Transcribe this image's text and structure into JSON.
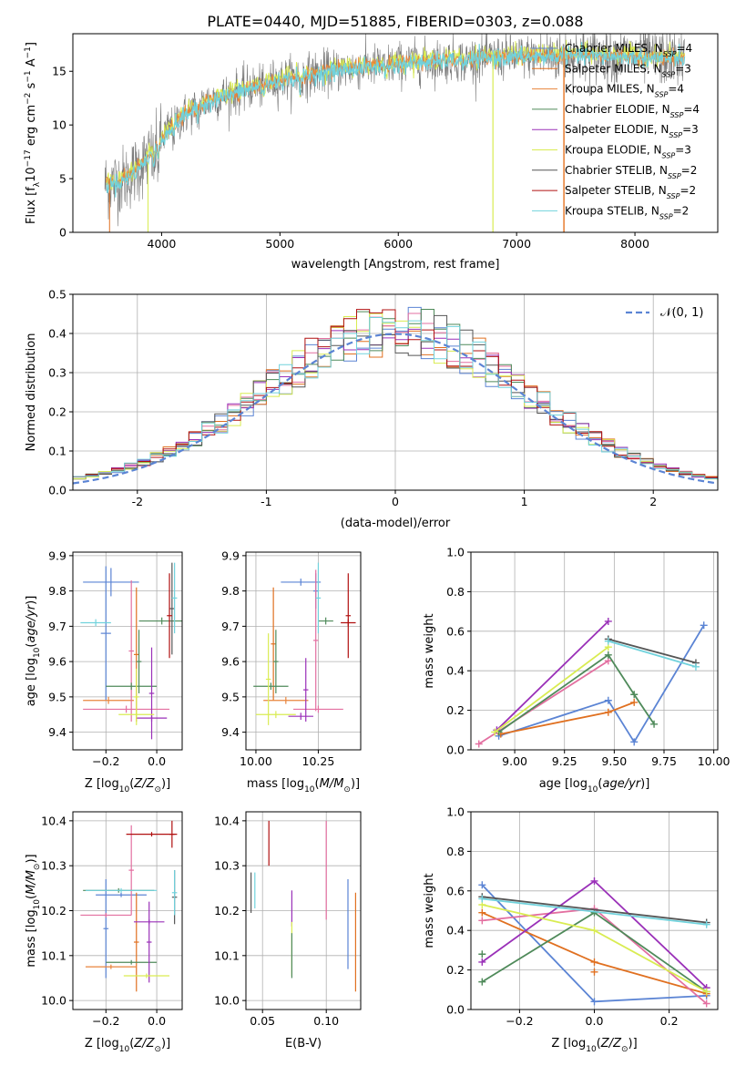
{
  "figure": {
    "title": "PLATE=0440, MJD=51885, FIBERID=0303, z=0.088"
  },
  "colors": {
    "chabrier_miles": "#5b84d4",
    "salpeter_miles": "#e07020",
    "kroupa_miles": "#e8843c",
    "chabrier_elodie": "#4f8a5a",
    "salpeter_elodie": "#9a30b8",
    "kroupa_elodie": "#d9ec52",
    "chabrier_stelib": "#555555",
    "salpeter_stelib": "#b01010",
    "kroupa_stelib": "#70d2dc",
    "pink": "#e36fa0",
    "normal_curve": "#5b84d4"
  },
  "chart_data": [
    {
      "id": "spectrum",
      "type": "line",
      "title": "PLATE=0440, MJD=51885, FIBERID=0303, z=0.088",
      "xlabel": "wavelength [Angstrom, rest frame]",
      "ylabel": "Flux [f_λ 10^-17 erg cm^-2 s^-1 A^-1]",
      "xlim": [
        3250,
        8700
      ],
      "ylim": [
        0,
        18.5
      ],
      "xticks": [
        4000,
        5000,
        6000,
        7000,
        8000
      ],
      "yticks": [
        0,
        5,
        10,
        15
      ],
      "grid": false,
      "legend_position": "upper-right",
      "continuum_x": [
        3550,
        3700,
        3850,
        3950,
        4050,
        4200,
        4400,
        4700,
        5000,
        5300,
        5600,
        5900,
        6200,
        6500,
        6800,
        7100,
        7400,
        7700,
        8000,
        8400
      ],
      "continuum_y": [
        4.5,
        5.0,
        6.5,
        8.0,
        9.5,
        11.0,
        12.3,
        13.3,
        14.2,
        14.8,
        15.3,
        15.6,
        15.9,
        16.1,
        16.3,
        16.4,
        16.5,
        16.5,
        16.4,
        16.2
      ],
      "series": [
        {
          "name": "Chabrier MILES, N_SSP=4",
          "color": "#5b84d4"
        },
        {
          "name": "Salpeter MILES, N_SSP=3",
          "color": "#e07020"
        },
        {
          "name": "Kroupa MILES, N_SSP=4",
          "color": "#e8843c"
        },
        {
          "name": "Chabrier ELODIE, N_SSP=4",
          "color": "#4f8a5a"
        },
        {
          "name": "Salpeter ELODIE, N_SSP=3",
          "color": "#9a30b8"
        },
        {
          "name": "Kroupa ELODIE, N_SSP=3",
          "color": "#d9ec52"
        },
        {
          "name": "Chabrier STELIB, N_SSP=2",
          "color": "#555555"
        },
        {
          "name": "Salpeter STELIB, N_SSP=2",
          "color": "#b01010"
        },
        {
          "name": "Kroupa STELIB, N_SSP=2",
          "color": "#70d2dc"
        }
      ],
      "legend_labels": [
        "Chabrier MILES, N",
        "Salpeter MILES, N",
        "Kroupa MILES, N",
        "Chabrier ELODIE, N",
        "Salpeter ELODIE, N",
        "Kroupa ELODIE, N",
        "Chabrier STELIB, N",
        "Salpeter STELIB, N",
        "Kroupa STELIB, N"
      ],
      "legend_subscript": "SSP",
      "legend_counts": [
        "=4",
        "=3",
        "=4",
        "=4",
        "=3",
        "=3",
        "=2",
        "=2",
        "=2"
      ]
    },
    {
      "id": "residuals",
      "type": "line",
      "xlabel": "(data-model)/error",
      "ylabel": "Normed distribution",
      "xlim": [
        -2.5,
        2.5
      ],
      "ylim": [
        0,
        0.5
      ],
      "xticks": [
        -2,
        -1,
        0,
        1,
        2
      ],
      "yticks": [
        0.0,
        0.1,
        0.2,
        0.3,
        0.4,
        0.5
      ],
      "grid": true,
      "legend_position": "upper-right",
      "legend": "N(0,1)",
      "normal_curve": {
        "mean": 0,
        "sigma": 1,
        "style": "dashed"
      },
      "bin_width": 0.1,
      "series_count": 9
    },
    {
      "id": "age_vs_Z",
      "type": "scatter",
      "xlabel": "Z [log10(Z/Z⊙)]",
      "ylabel": "age [log10(age/yr)]",
      "xlim": [
        -0.33,
        0.1
      ],
      "ylim": [
        9.35,
        9.91
      ],
      "xticks": [
        -0.2,
        0.0
      ],
      "xticklabels": [
        "−0.2",
        "0.0"
      ],
      "yticks": [
        9.4,
        9.5,
        9.6,
        9.7,
        9.8,
        9.9
      ],
      "grid": true,
      "points": [
        {
          "x": -0.18,
          "xerr": 0.11,
          "y": 9.825,
          "yerr": 0.04,
          "color": "#5b84d4"
        },
        {
          "x": -0.2,
          "xerr": 0.02,
          "y": 9.68,
          "yerr": 0.19,
          "color": "#5b84d4"
        },
        {
          "x": -0.08,
          "xerr": 0.01,
          "y": 9.62,
          "yerr": 0.19,
          "color": "#e07020"
        },
        {
          "x": -0.19,
          "xerr": 0.1,
          "y": 9.49,
          "yerr": 0.01,
          "color": "#e8843c"
        },
        {
          "x": -0.1,
          "xerr": 0.01,
          "y": 9.63,
          "yerr": 0.2,
          "color": "#e36fa0"
        },
        {
          "x": -0.12,
          "xerr": 0.17,
          "y": 9.465,
          "yerr": 0.01,
          "color": "#e36fa0"
        },
        {
          "x": -0.1,
          "xerr": 0.1,
          "y": 9.53,
          "yerr": 0.01,
          "color": "#4f8a5a"
        },
        {
          "x": -0.07,
          "xerr": 0.01,
          "y": 9.6,
          "yerr": 0.09,
          "color": "#4f8a5a"
        },
        {
          "x": -0.02,
          "xerr": 0.06,
          "y": 9.44,
          "yerr": 0.01,
          "color": "#9a30b8"
        },
        {
          "x": -0.02,
          "xerr": 0.01,
          "y": 9.51,
          "yerr": 0.13,
          "color": "#9a30b8"
        },
        {
          "x": -0.08,
          "xerr": 0.07,
          "y": 9.45,
          "yerr": 0.01,
          "color": "#d9ec52"
        },
        {
          "x": -0.08,
          "xerr": 0.01,
          "y": 9.5,
          "yerr": 0.08,
          "color": "#d9ec52"
        },
        {
          "x": 0.02,
          "xerr": 0.09,
          "y": 9.715,
          "yerr": 0.01,
          "color": "#4f8a5a"
        },
        {
          "x": 0.06,
          "xerr": 0.01,
          "y": 9.75,
          "yerr": 0.13,
          "color": "#555555"
        },
        {
          "x": 0.05,
          "xerr": 0.01,
          "y": 9.73,
          "yerr": 0.12,
          "color": "#b01010"
        },
        {
          "x": -0.24,
          "xerr": 0.06,
          "y": 9.71,
          "yerr": 0.01,
          "color": "#70d2dc"
        },
        {
          "x": 0.07,
          "xerr": 0.01,
          "y": 9.78,
          "yerr": 0.1,
          "color": "#70d2dc"
        }
      ]
    },
    {
      "id": "age_vs_mass",
      "type": "scatter",
      "xlabel": "mass [log10(M/M⊙)]",
      "ylabel": "",
      "xlim": [
        9.96,
        10.42
      ],
      "ylim": [
        9.35,
        9.91
      ],
      "xticks": [
        10.0,
        10.25
      ],
      "xticklabels": [
        "10.00",
        "10.25"
      ],
      "yticks": [
        9.4,
        9.5,
        9.6,
        9.7,
        9.8,
        9.9
      ],
      "grid": true,
      "points": [
        {
          "x": 10.18,
          "xerr": 0.08,
          "y": 9.825,
          "yerr": 0.01,
          "color": "#5b84d4"
        },
        {
          "x": 10.24,
          "xerr": 0.01,
          "y": 9.8,
          "yerr": 0.05,
          "color": "#5b84d4"
        },
        {
          "x": 10.07,
          "xerr": 0.01,
          "y": 9.65,
          "yerr": 0.16,
          "color": "#e07020"
        },
        {
          "x": 10.12,
          "xerr": 0.09,
          "y": 9.49,
          "yerr": 0.01,
          "color": "#e8843c"
        },
        {
          "x": 10.25,
          "xerr": 0.1,
          "y": 9.465,
          "yerr": 0.01,
          "color": "#e36fa0"
        },
        {
          "x": 10.24,
          "xerr": 0.01,
          "y": 9.66,
          "yerr": 0.2,
          "color": "#e36fa0"
        },
        {
          "x": 10.08,
          "xerr": 0.01,
          "y": 9.6,
          "yerr": 0.09,
          "color": "#4f8a5a"
        },
        {
          "x": 10.06,
          "xerr": 0.07,
          "y": 9.53,
          "yerr": 0.01,
          "color": "#4f8a5a"
        },
        {
          "x": 10.18,
          "xerr": 0.05,
          "y": 9.445,
          "yerr": 0.01,
          "color": "#9a30b8"
        },
        {
          "x": 10.2,
          "xerr": 0.01,
          "y": 9.52,
          "yerr": 0.09,
          "color": "#9a30b8"
        },
        {
          "x": 10.05,
          "xerr": 0.01,
          "y": 9.55,
          "yerr": 0.13,
          "color": "#d9ec52"
        },
        {
          "x": 10.08,
          "xerr": 0.08,
          "y": 9.45,
          "yerr": 0.01,
          "color": "#d9ec52"
        },
        {
          "x": 10.28,
          "xerr": 0.03,
          "y": 9.715,
          "yerr": 0.01,
          "color": "#4f8a5a"
        },
        {
          "x": 10.37,
          "xerr": 0.03,
          "y": 9.71,
          "yerr": 0.01,
          "color": "#b01010"
        },
        {
          "x": 10.37,
          "xerr": 0.01,
          "y": 9.73,
          "yerr": 0.12,
          "color": "#b01010"
        },
        {
          "x": 10.25,
          "xerr": 0.01,
          "y": 9.78,
          "yerr": 0.1,
          "color": "#70d2dc"
        }
      ]
    },
    {
      "id": "mass_weight_vs_age",
      "type": "line",
      "xlabel": "age [log10(age/yr)]",
      "ylabel": "mass weight",
      "xlim": [
        8.78,
        10.02
      ],
      "ylim": [
        0.0,
        1.0
      ],
      "xticks": [
        9.0,
        9.25,
        9.5,
        9.75,
        10.0
      ],
      "xticklabels": [
        "9.00",
        "9.25",
        "9.50",
        "9.75",
        "10.00"
      ],
      "yticks": [
        0.0,
        0.2,
        0.4,
        0.6,
        0.8,
        1.0
      ],
      "grid": true,
      "series": [
        {
          "color": "#5b84d4",
          "x": [
            8.92,
            9.47,
            9.6,
            9.95
          ],
          "y": [
            0.07,
            0.25,
            0.04,
            0.63
          ]
        },
        {
          "color": "#e07020",
          "x": [
            8.93,
            9.47,
            9.6
          ],
          "y": [
            0.08,
            0.19,
            0.24
          ]
        },
        {
          "color": "#e36fa0",
          "x": [
            8.82,
            9.47
          ],
          "y": [
            0.03,
            0.45
          ]
        },
        {
          "color": "#4f8a5a",
          "x": [
            8.92,
            9.47,
            9.6,
            9.7
          ],
          "y": [
            0.09,
            0.48,
            0.28,
            0.13
          ]
        },
        {
          "color": "#9a30b8",
          "x": [
            8.91,
            9.47
          ],
          "y": [
            0.1,
            0.65
          ]
        },
        {
          "color": "#d9ec52",
          "x": [
            8.9,
            9.47
          ],
          "y": [
            0.09,
            0.52
          ]
        },
        {
          "color": "#555555",
          "x": [
            9.47,
            9.91
          ],
          "y": [
            0.56,
            0.44
          ]
        },
        {
          "color": "#70d2dc",
          "x": [
            9.47,
            9.91
          ],
          "y": [
            0.55,
            0.42
          ]
        }
      ]
    },
    {
      "id": "mass_vs_Z",
      "type": "scatter",
      "xlabel": "Z [log10(Z/Z⊙)]",
      "ylabel": "mass [log10(M/M⊙)]",
      "xlim": [
        -0.33,
        0.1
      ],
      "ylim": [
        9.98,
        10.42
      ],
      "xticks": [
        -0.2,
        0.0
      ],
      "xticklabels": [
        "−0.2",
        "0.0"
      ],
      "yticks": [
        10.0,
        10.1,
        10.2,
        10.3,
        10.4
      ],
      "grid": true,
      "points": [
        {
          "x": -0.14,
          "xerr": 0.1,
          "y": 10.235,
          "yerr": 0.005,
          "color": "#5b84d4"
        },
        {
          "x": -0.2,
          "xerr": 0.01,
          "y": 10.16,
          "yerr": 0.11,
          "color": "#5b84d4"
        },
        {
          "x": -0.08,
          "xerr": 0.01,
          "y": 10.13,
          "yerr": 0.11,
          "color": "#e07020"
        },
        {
          "x": -0.18,
          "xerr": 0.1,
          "y": 10.075,
          "yerr": 0.005,
          "color": "#e8843c"
        },
        {
          "x": -0.2,
          "xerr": 0.1,
          "y": 10.19,
          "yerr": 0.005,
          "color": "#e36fa0"
        },
        {
          "x": -0.1,
          "xerr": 0.01,
          "y": 10.29,
          "yerr": 0.1,
          "color": "#e36fa0"
        },
        {
          "x": -0.1,
          "xerr": 0.1,
          "y": 10.085,
          "yerr": 0.005,
          "color": "#4f8a5a"
        },
        {
          "x": -0.03,
          "xerr": 0.06,
          "y": 10.175,
          "yerr": 0.005,
          "color": "#9a30b8"
        },
        {
          "x": -0.03,
          "xerr": 0.01,
          "y": 10.13,
          "yerr": 0.09,
          "color": "#9a30b8"
        },
        {
          "x": -0.04,
          "xerr": 0.09,
          "y": 10.055,
          "yerr": 0.005,
          "color": "#d9ec52"
        },
        {
          "x": -0.15,
          "xerr": 0.14,
          "y": 10.245,
          "yerr": 0.005,
          "color": "#4f8a5a"
        },
        {
          "x": 0.07,
          "xerr": 0.01,
          "y": 10.23,
          "yerr": 0.06,
          "color": "#555555"
        },
        {
          "x": -0.02,
          "xerr": 0.1,
          "y": 10.37,
          "yerr": 0.005,
          "color": "#b01010"
        },
        {
          "x": 0.06,
          "xerr": 0.01,
          "y": 10.37,
          "yerr": 0.03,
          "color": "#b01010"
        },
        {
          "x": -0.14,
          "xerr": 0.14,
          "y": 10.245,
          "yerr": 0.005,
          "color": "#70d2dc"
        },
        {
          "x": 0.07,
          "xerr": 0.01,
          "y": 10.24,
          "yerr": 0.05,
          "color": "#70d2dc"
        }
      ]
    },
    {
      "id": "mass_vs_ebv",
      "type": "scatter",
      "xlabel": "E(B-V)",
      "ylabel": "",
      "xlim": [
        0.037,
        0.127
      ],
      "ylim": [
        9.98,
        10.42
      ],
      "xticks": [
        0.05,
        0.1
      ],
      "xticklabels": [
        "0.05",
        "0.10"
      ],
      "yticks": [
        10.0,
        10.1,
        10.2,
        10.3,
        10.4
      ],
      "grid": true,
      "points": [
        {
          "x": 0.041,
          "yerr": 0.045,
          "y": 10.24,
          "color": "#555555"
        },
        {
          "x": 0.044,
          "yerr": 0.04,
          "y": 10.245,
          "color": "#70d2dc"
        },
        {
          "x": 0.055,
          "yerr": 0.05,
          "y": 10.35,
          "color": "#b01010"
        },
        {
          "x": 0.073,
          "yerr": 0.04,
          "y": 10.205,
          "color": "#9a30b8"
        },
        {
          "x": 0.073,
          "yerr": 0.06,
          "y": 10.115,
          "color": "#d9ec52"
        },
        {
          "x": 0.073,
          "yerr": 0.05,
          "y": 10.1,
          "color": "#4f8a5a"
        },
        {
          "x": 0.1,
          "yerr": 0.11,
          "y": 10.29,
          "color": "#e36fa0"
        },
        {
          "x": 0.117,
          "yerr": 0.1,
          "y": 10.17,
          "color": "#5b84d4"
        },
        {
          "x": 0.123,
          "yerr": 0.11,
          "y": 10.13,
          "color": "#e07020"
        }
      ]
    },
    {
      "id": "mass_weight_vs_Z",
      "type": "line",
      "xlabel": "Z [log10(Z/Z⊙)]",
      "ylabel": "mass weight",
      "xlim": [
        -0.33,
        0.33
      ],
      "ylim": [
        0.0,
        1.0
      ],
      "xticks": [
        -0.2,
        0.0,
        0.2
      ],
      "xticklabels": [
        "−0.2",
        "0.0",
        "0.2"
      ],
      "yticks": [
        0.0,
        0.2,
        0.4,
        0.6,
        0.8,
        1.0
      ],
      "grid": true,
      "series": [
        {
          "color": "#5b84d4",
          "x": [
            -0.3,
            0.0,
            0.3
          ],
          "y": [
            0.63,
            0.04,
            0.07
          ]
        },
        {
          "color": "#e07020",
          "x": [
            -0.3,
            0.0,
            0.3
          ],
          "y": [
            0.49,
            0.24,
            0.08
          ]
        },
        {
          "color": "#e36fa0",
          "x": [
            -0.3,
            0.0,
            0.3
          ],
          "y": [
            0.45,
            0.51,
            0.03
          ]
        },
        {
          "color": "#4f8a5a",
          "x": [
            -0.3,
            0.0,
            0.3
          ],
          "y": [
            0.14,
            0.49,
            0.09
          ]
        },
        {
          "color": "#9a30b8",
          "x": [
            -0.3,
            0.0,
            0.3
          ],
          "y": [
            0.24,
            0.65,
            0.11
          ]
        },
        {
          "color": "#d9ec52",
          "x": [
            -0.3,
            0.0,
            0.3
          ],
          "y": [
            0.53,
            0.4,
            0.09
          ]
        },
        {
          "color": "#555555",
          "x": [
            -0.3,
            0.3
          ],
          "y": [
            0.57,
            0.44
          ]
        },
        {
          "color": "#70d2dc",
          "x": [
            -0.3,
            0.3
          ],
          "y": [
            0.56,
            0.43
          ]
        },
        {
          "color": "#e07020",
          "x": [
            0.0
          ],
          "y": [
            0.19
          ]
        },
        {
          "color": "#4f8a5a",
          "x": [
            -0.3
          ],
          "y": [
            0.28
          ]
        }
      ]
    }
  ]
}
